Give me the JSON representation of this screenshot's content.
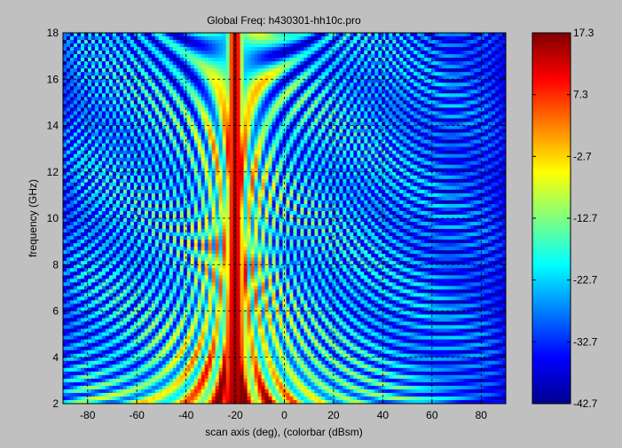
{
  "chart_data": [
    {
      "type": "heatmap",
      "title": "Global Freq:  h430301-hh10c.pro",
      "xlabel": "scan axis (deg),  (colorbar (dBsm)",
      "ylabel": "frequency (GHz)",
      "xlim": [
        -90,
        90
      ],
      "ylim": [
        2,
        18
      ],
      "grid": true,
      "x_ticks": [
        -80,
        -60,
        -40,
        -20,
        0,
        20,
        40,
        60,
        80
      ],
      "y_ticks": [
        2,
        4,
        6,
        8,
        10,
        12,
        14,
        16,
        18
      ],
      "x_tick_labels": [
        "-80",
        "-60",
        "-40",
        "-20",
        "0",
        "20",
        "40",
        "60",
        "80"
      ],
      "y_tick_labels": [
        "2",
        "4",
        "6",
        "8",
        "10",
        "12",
        "14",
        "16",
        "18"
      ],
      "peak_angle_deg": -20,
      "description_values": {
        "main_lobe_center_deg": -20,
        "min_dbsm": -42.7,
        "max_dbsm": 17.3
      }
    },
    {
      "type": "colorbar",
      "clim": [
        -42.7,
        17.3
      ],
      "ticks": [
        17.3,
        7.3,
        -2.7,
        -12.7,
        -22.7,
        -32.7,
        -42.7
      ],
      "tick_labels": [
        "17.3",
        "7.3",
        "-2.7",
        "-12.7",
        "-22.7",
        "-32.7",
        "-42.7"
      ],
      "colormap": "jet"
    }
  ],
  "colors": {
    "background": "#c0c0c0",
    "axis_line": "#000000",
    "grid": "#000000"
  }
}
